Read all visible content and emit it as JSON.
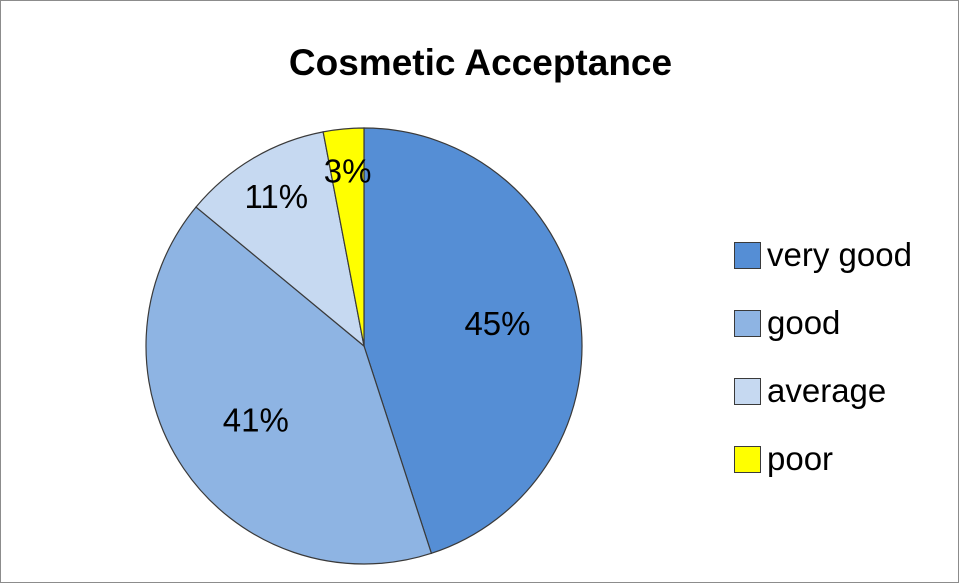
{
  "chart_data": {
    "type": "pie",
    "title": "Cosmetic Acceptance",
    "slices": [
      {
        "label": "very good",
        "value": 45,
        "display": "45%",
        "color": "#558ed5"
      },
      {
        "label": "good",
        "value": 41,
        "display": "41%",
        "color": "#8eb4e3"
      },
      {
        "label": "average",
        "value": 11,
        "display": "11%",
        "color": "#c6d9f1"
      },
      {
        "label": "poor",
        "value": 3,
        "display": "3%",
        "color": "#ffff00"
      }
    ],
    "legend_position": "right",
    "slice_border_color": "#3a3a3a"
  }
}
